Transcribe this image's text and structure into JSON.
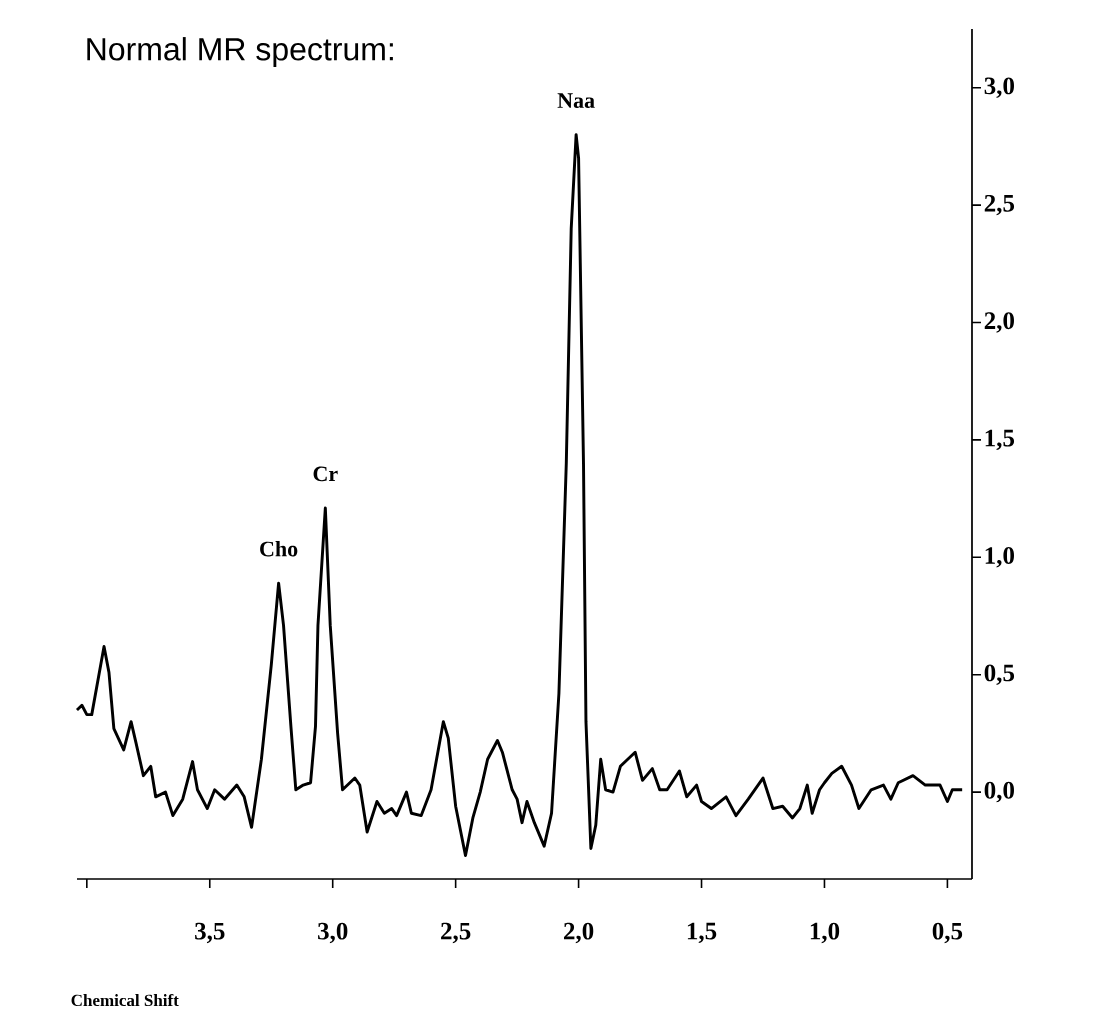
{
  "chart_data": {
    "type": "line",
    "title": "Normal MR spectrum:",
    "xlabel": "Chemical Shift",
    "x": [
      4.04,
      4.02,
      4.0,
      3.98,
      3.93,
      3.91,
      3.89,
      3.85,
      3.82,
      3.8,
      3.77,
      3.74,
      3.72,
      3.68,
      3.65,
      3.61,
      3.57,
      3.55,
      3.51,
      3.48,
      3.44,
      3.39,
      3.36,
      3.33,
      3.29,
      3.25,
      3.22,
      3.2,
      3.17,
      3.15,
      3.12,
      3.09,
      3.07,
      3.06,
      3.03,
      3.01,
      2.98,
      2.96,
      2.91,
      2.89,
      2.86,
      2.82,
      2.79,
      2.76,
      2.74,
      2.7,
      2.68,
      2.64,
      2.6,
      2.55,
      2.53,
      2.5,
      2.46,
      2.43,
      2.4,
      2.37,
      2.33,
      2.31,
      2.27,
      2.25,
      2.23,
      2.21,
      2.18,
      2.14,
      2.11,
      2.08,
      2.05,
      2.03,
      2.01,
      2.0,
      1.98,
      1.97,
      1.95,
      1.93,
      1.91,
      1.89,
      1.86,
      1.83,
      1.8,
      1.77,
      1.74,
      1.7,
      1.67,
      1.64,
      1.59,
      1.56,
      1.52,
      1.5,
      1.46,
      1.4,
      1.36,
      1.31,
      1.25,
      1.21,
      1.17,
      1.13,
      1.1,
      1.07,
      1.05,
      1.02,
      1.0,
      0.97,
      0.93,
      0.89,
      0.86,
      0.81,
      0.76,
      0.73,
      0.7,
      0.64,
      0.59,
      0.53,
      0.5,
      0.48,
      0.44
    ],
    "values": [
      0.35,
      0.37,
      0.33,
      0.33,
      0.62,
      0.51,
      0.27,
      0.18,
      0.3,
      0.21,
      0.07,
      0.11,
      -0.02,
      0.0,
      -0.1,
      -0.03,
      0.13,
      0.01,
      -0.07,
      0.01,
      -0.03,
      0.03,
      -0.02,
      -0.15,
      0.14,
      0.54,
      0.89,
      0.71,
      0.28,
      0.01,
      0.03,
      0.04,
      0.28,
      0.71,
      1.21,
      0.71,
      0.25,
      0.01,
      0.06,
      0.03,
      -0.17,
      -0.04,
      -0.09,
      -0.07,
      -0.1,
      0.0,
      -0.09,
      -0.1,
      0.01,
      0.3,
      0.23,
      -0.06,
      -0.27,
      -0.11,
      0.0,
      0.14,
      0.22,
      0.17,
      0.01,
      -0.03,
      -0.13,
      -0.04,
      -0.13,
      -0.23,
      -0.09,
      0.42,
      1.4,
      2.4,
      2.8,
      2.7,
      1.4,
      0.3,
      -0.24,
      -0.14,
      0.14,
      0.01,
      0.0,
      0.11,
      0.14,
      0.17,
      0.05,
      0.1,
      0.01,
      0.01,
      0.09,
      -0.02,
      0.03,
      -0.04,
      -0.07,
      -0.02,
      -0.1,
      -0.03,
      0.06,
      -0.07,
      -0.06,
      -0.11,
      -0.07,
      0.03,
      -0.09,
      0.01,
      0.04,
      0.08,
      0.11,
      0.03,
      -0.07,
      0.01,
      0.03,
      -0.03,
      0.04,
      0.07,
      0.03,
      0.03,
      -0.04,
      0.01,
      0.01
    ],
    "color": "#000000",
    "line_style": "solid",
    "xlim": [
      4.04,
      0.4
    ],
    "ylim": [
      -0.37,
      3.25
    ],
    "xticks": [
      {
        "value": 4.0,
        "label": null
      },
      {
        "value": 3.5,
        "label": "3,5"
      },
      {
        "value": 3.0,
        "label": "3,0"
      },
      {
        "value": 2.5,
        "label": "2,5"
      },
      {
        "value": 2.0,
        "label": "2,0"
      },
      {
        "value": 1.5,
        "label": "1,5"
      },
      {
        "value": 1.0,
        "label": "1,0"
      },
      {
        "value": 0.5,
        "label": "0,5"
      }
    ],
    "yticks": [
      {
        "value": 0.0,
        "label": "0,0"
      },
      {
        "value": 0.5,
        "label": "0,5"
      },
      {
        "value": 1.0,
        "label": "1,0"
      },
      {
        "value": 1.5,
        "label": "1,5"
      },
      {
        "value": 2.0,
        "label": "2,0"
      },
      {
        "value": 2.5,
        "label": "2,5"
      },
      {
        "value": 3.0,
        "label": "3,0"
      }
    ],
    "annotations": [
      {
        "text": "Cho",
        "x": 3.22,
        "y": 0.89
      },
      {
        "text": "Cr",
        "x": 3.03,
        "y": 1.21
      },
      {
        "text": "Naa",
        "x": 2.01,
        "y": 2.8
      }
    ]
  }
}
